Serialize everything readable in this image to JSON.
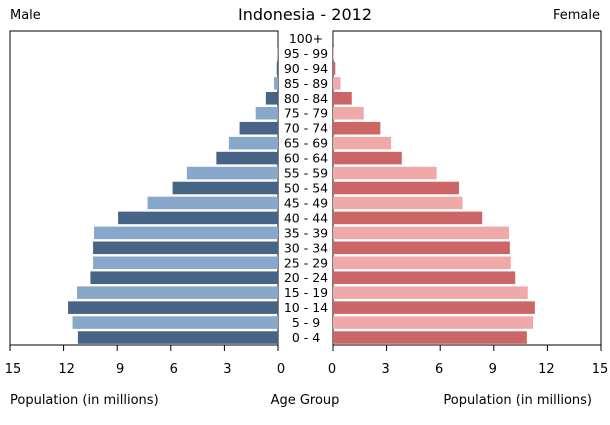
{
  "chart_data": {
    "type": "bar",
    "title": "Indonesia - 2012",
    "left_label": "Male",
    "right_label": "Female",
    "xlabel_left": "Population (in millions)",
    "xlabel_center": "Age Group",
    "xlabel_right": "Population (in millions)",
    "xlim": [
      0,
      15
    ],
    "ticks": [
      "15",
      "12",
      "9",
      "6",
      "3",
      "0",
      "0",
      "3",
      "6",
      "9",
      "12",
      "15"
    ],
    "categories": [
      "100+",
      "95 - 99",
      "90 - 94",
      "85 - 89",
      "80 - 84",
      "75 - 79",
      "70 - 74",
      "65 - 69",
      "60 - 64",
      "55 - 59",
      "50 - 54",
      "45 - 49",
      "40 - 44",
      "35 - 39",
      "30 - 34",
      "25 - 29",
      "20 - 24",
      "15 - 19",
      "10 - 14",
      "5 - 9",
      "0 - 4"
    ],
    "series": [
      {
        "name": "Male",
        "values": [
          0.01,
          0.02,
          0.07,
          0.22,
          0.68,
          1.25,
          2.15,
          2.75,
          3.45,
          5.1,
          5.9,
          7.3,
          8.95,
          10.3,
          10.35,
          10.35,
          10.5,
          11.25,
          11.75,
          11.5,
          11.2
        ]
      },
      {
        "name": "Female",
        "values": [
          0.01,
          0.04,
          0.13,
          0.42,
          1.05,
          1.72,
          2.65,
          3.25,
          3.85,
          5.8,
          7.05,
          7.25,
          8.35,
          9.85,
          9.9,
          9.95,
          10.2,
          10.9,
          11.3,
          11.2,
          10.85
        ]
      }
    ],
    "colors": {
      "male_dark": "#476386",
      "male_light": "#87a8cb",
      "female_dark": "#cc6666",
      "female_light": "#f0a9a9"
    },
    "grid": false
  }
}
